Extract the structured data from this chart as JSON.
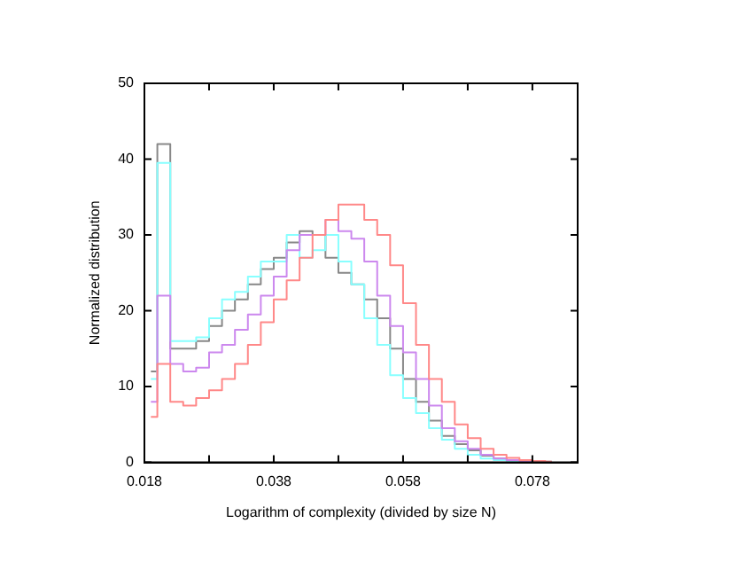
{
  "chart_data": {
    "type": "step",
    "xlabel": "Logarithm of complexity (divided by size N)",
    "ylabel": "Normalized distribution",
    "x": [
      0.019,
      0.021,
      0.023,
      0.025,
      0.027,
      0.029,
      0.031,
      0.033,
      0.035,
      0.037,
      0.039,
      0.041,
      0.043,
      0.045,
      0.047,
      0.049,
      0.051,
      0.053,
      0.055,
      0.057,
      0.059,
      0.061,
      0.063,
      0.065,
      0.067,
      0.069,
      0.071,
      0.073,
      0.075,
      0.077,
      0.079,
      0.081
    ],
    "series": [
      {
        "color": "#ff8888",
        "values": [
          6,
          13,
          8,
          7.5,
          8.5,
          9.5,
          11,
          13,
          15.5,
          18.5,
          21.5,
          24,
          27,
          30,
          32,
          34,
          34,
          32,
          30,
          26,
          21,
          15.5,
          11,
          8,
          5,
          3.2,
          1.8,
          1,
          0.6,
          0.3,
          0.2,
          0.1
        ]
      },
      {
        "color": "#cc88ee",
        "values": [
          8,
          22,
          13,
          12,
          12.5,
          14.5,
          15.5,
          17.5,
          19.5,
          22,
          24.5,
          28,
          30,
          30,
          32,
          30.5,
          29.5,
          26.5,
          22,
          18,
          14.5,
          11,
          7.5,
          4.5,
          2.8,
          1.8,
          1,
          0.5,
          0.3,
          0.2,
          0.1,
          0
        ]
      },
      {
        "color": "#88ffff",
        "values": [
          11,
          39.5,
          16,
          16,
          16.5,
          19,
          21.5,
          22.5,
          24.5,
          26.5,
          26.5,
          30,
          27,
          28,
          30,
          26.5,
          23.5,
          19,
          15.5,
          11.5,
          8.5,
          6.5,
          4.5,
          3,
          1.8,
          1,
          0.5,
          0.3,
          0.1,
          0.1,
          null,
          null
        ]
      },
      {
        "color": "#888888",
        "values": [
          12,
          42,
          15,
          15,
          16,
          18,
          20,
          21.5,
          23.5,
          25.5,
          27,
          29,
          30.5,
          30,
          27,
          25,
          23.5,
          21.5,
          19,
          15,
          11,
          8,
          5.5,
          3.5,
          2.4,
          1.6,
          0.9,
          0.5,
          0.3,
          0.2,
          0.1,
          0.1
        ]
      }
    ],
    "xlim": [
      0.018,
      0.085
    ],
    "xticks": [
      0.018,
      {
        "value": 0.028,
        "label": null
      },
      0.038,
      {
        "value": 0.048,
        "label": null
      },
      0.058,
      {
        "value": 0.068,
        "label": null
      },
      0.078
    ],
    "ylim": [
      0,
      50
    ],
    "yticks": [
      0,
      10,
      20,
      30,
      40,
      50
    ],
    "grid": false,
    "legend": false
  }
}
